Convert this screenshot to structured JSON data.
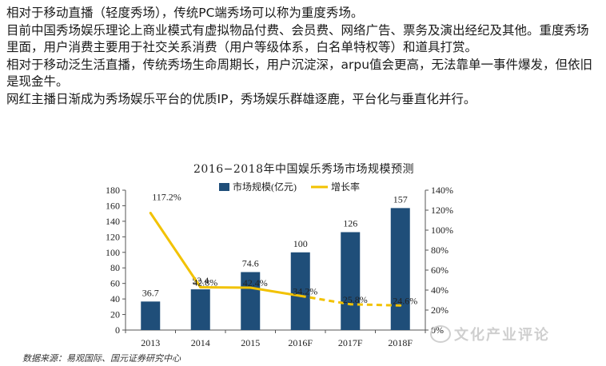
{
  "bullets": [
    "相对于移动直播（轻度秀场），传统PC端秀场可以称为重度秀场。",
    "目前中国秀场娱乐理论上商业模式有虚拟物品付费、会员费、网络广告、票务及演出经纪及其他。重度秀场里面，用户消费主要用于社交关系消费（用户等级体系，白名单特权等）和道具打赏。",
    "相对于移动泛生活直播，传统秀场生命周期长，用户沉淀深，arpu值会更高，无法靠单一事件爆发，但依旧是现金牛。",
    "网红主播日渐成为秀场娱乐平台的优质IP，秀场娱乐群雄逐鹿，平台化与垂直化并行。"
  ],
  "source": "数据来源：易观国际、国元证券研究中心",
  "watermark": "文化产业评论",
  "colors": {
    "bar": "#1f4e79",
    "line": "#f2c200",
    "axis": "#555555",
    "text": "#222222"
  },
  "chart_data": {
    "type": "bar",
    "title": "2016−2018年中国娱乐秀场市场规模预测",
    "categories": [
      "2013",
      "2014",
      "2015",
      "2016F",
      "2017F",
      "2018F"
    ],
    "series": [
      {
        "name": "市场规模(亿元)",
        "type": "bar",
        "axis": "left",
        "values": [
          36.7,
          52.4,
          74.6,
          100,
          126,
          157
        ],
        "labels": [
          "36.7",
          "52.4",
          "74.6",
          "100",
          "126",
          "157"
        ]
      },
      {
        "name": "增长率",
        "type": "line",
        "axis": "right",
        "values": [
          117.2,
          42.8,
          42.4,
          34.2,
          25.8,
          24.6
        ],
        "labels": [
          "117.2%",
          "42.8%",
          "42.4%",
          "34.2%",
          "25.8%",
          "24.6%"
        ]
      }
    ],
    "y_left": {
      "min": 0,
      "max": 180,
      "step": 20,
      "ticks": [
        "0",
        "20",
        "40",
        "60",
        "80",
        "100",
        "120",
        "140",
        "160",
        "180"
      ]
    },
    "y_right": {
      "min": 0,
      "max": 140,
      "step": 20,
      "ticks": [
        "0%",
        "20%",
        "40%",
        "60%",
        "80%",
        "100%",
        "120%",
        "140%"
      ]
    },
    "legend_position": "top",
    "grid": false
  }
}
